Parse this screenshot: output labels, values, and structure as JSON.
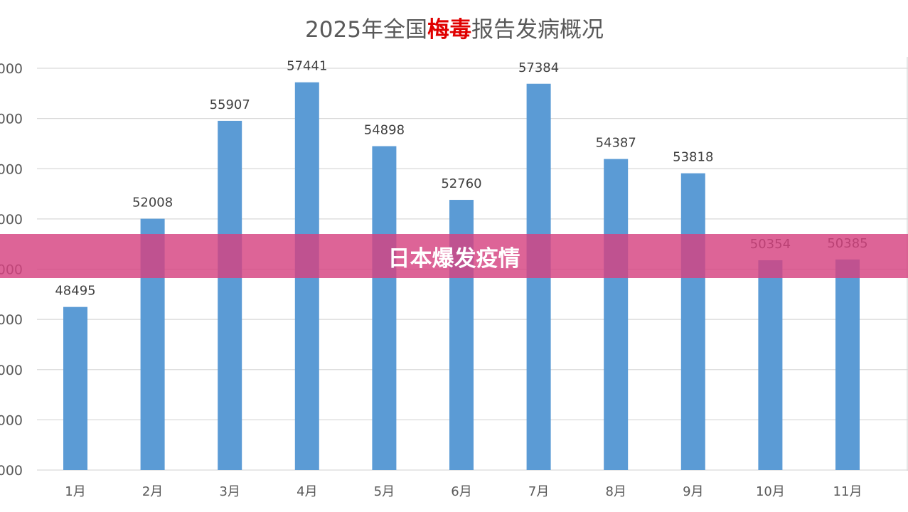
{
  "chart_data": {
    "type": "bar",
    "title_parts": [
      "2025年全国",
      "梅毒",
      "报告发病概况"
    ],
    "categories": [
      "1月",
      "2月",
      "3月",
      "4月",
      "5月",
      "6月",
      "7月",
      "8月",
      "9月",
      "10月",
      "11月"
    ],
    "values": [
      48495,
      52008,
      55907,
      57441,
      54898,
      52760,
      57384,
      54387,
      53818,
      50354,
      50385
    ],
    "ylim": [
      42000,
      58000
    ],
    "yticks": [
      42000,
      44000,
      46000,
      48000,
      50000,
      52000,
      54000,
      56000,
      58000
    ],
    "ytick_labels": [
      "000",
      "000",
      "000",
      "000",
      "000",
      "000",
      "000",
      "000",
      "000"
    ],
    "grid": true,
    "title_highlight_color": "#e00000",
    "bar_color": "#5b9bd5"
  },
  "banner": {
    "text": "日本爆发疫情",
    "color": "#d64280"
  }
}
